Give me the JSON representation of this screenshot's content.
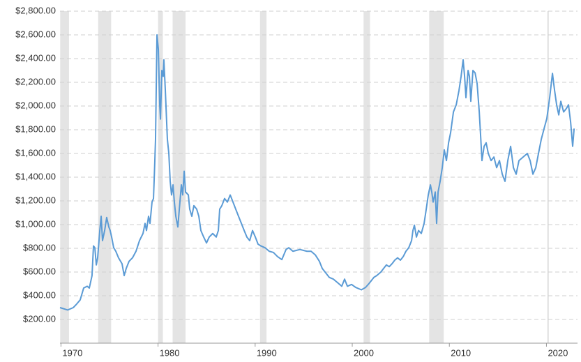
{
  "chart_data": {
    "type": "line",
    "xlim": [
      1969.9,
      2023.2
    ],
    "xticks": [
      1970,
      1980,
      1990,
      2000,
      2010,
      2020
    ],
    "ylim": [
      0,
      2800
    ],
    "yticks": [
      {
        "value": 200,
        "label": "$200.00"
      },
      {
        "value": 400,
        "label": "$400.00"
      },
      {
        "value": 600,
        "label": "$600.00"
      },
      {
        "value": 800,
        "label": "$800.00"
      },
      {
        "value": 1000,
        "label": "$1,000.00"
      },
      {
        "value": 1200,
        "label": "$1,200.00"
      },
      {
        "value": 1400,
        "label": "$1,400.00"
      },
      {
        "value": 1600,
        "label": "$1,600.00"
      },
      {
        "value": 1800,
        "label": "$1,800.00"
      },
      {
        "value": 2000,
        "label": "$2,000.00"
      },
      {
        "value": 2200,
        "label": "$2,200.00"
      },
      {
        "value": 2400,
        "label": "$2,400.00"
      },
      {
        "value": 2600,
        "label": "$2,600.00"
      },
      {
        "value": 2800,
        "label": "$2,800.00"
      }
    ],
    "grid": true,
    "color": "#5b9bd5",
    "shade_color": "#e4e4e4",
    "shaded_ranges": [
      [
        1969.92,
        1970.83
      ],
      [
        1973.83,
        1975.17
      ],
      [
        1980.0,
        1980.5
      ],
      [
        1981.5,
        1982.83
      ],
      [
        1990.5,
        1991.17
      ],
      [
        2001.17,
        2001.83
      ],
      [
        2007.92,
        2009.42
      ],
      [
        2020.08,
        2020.25
      ]
    ],
    "x": [
      1969.9,
      1970.69,
      1971.27,
      1971.62,
      1971.98,
      1972.34,
      1972.7,
      1972.92,
      1973.2,
      1973.35,
      1973.49,
      1973.64,
      1973.78,
      1974.0,
      1974.14,
      1974.28,
      1974.5,
      1974.71,
      1974.93,
      1975.07,
      1975.22,
      1975.43,
      1975.65,
      1975.93,
      1976.29,
      1976.51,
      1976.72,
      1977.01,
      1977.37,
      1977.73,
      1978.09,
      1978.45,
      1978.66,
      1978.81,
      1979.02,
      1979.17,
      1979.38,
      1979.53,
      1979.67,
      1979.74,
      1979.89,
      1980.03,
      1980.17,
      1980.25,
      1980.39,
      1980.53,
      1980.6,
      1980.75,
      1980.96,
      1981.11,
      1981.25,
      1981.39,
      1981.54,
      1981.68,
      1981.83,
      1982.04,
      1982.19,
      1982.4,
      1982.54,
      1982.69,
      1982.83,
      1983.12,
      1983.26,
      1983.48,
      1983.69,
      1983.98,
      1984.2,
      1984.41,
      1984.7,
      1984.99,
      1985.27,
      1985.63,
      1985.99,
      1986.21,
      1986.35,
      1986.57,
      1986.85,
      1987.14,
      1987.43,
      1987.72,
      1988.0,
      1988.29,
      1988.58,
      1988.87,
      1989.15,
      1989.44,
      1989.73,
      1990.02,
      1990.3,
      1990.59,
      1991.02,
      1991.45,
      1991.88,
      1992.31,
      1992.75,
      1993.18,
      1993.46,
      1993.89,
      1994.61,
      1995.33,
      1995.76,
      1996.19,
      1996.62,
      1996.91,
      1997.2,
      1997.63,
      1998.06,
      1998.49,
      1998.92,
      1999.21,
      1999.5,
      1999.93,
      2000.36,
      2000.94,
      2001.37,
      2001.8,
      2002.23,
      2002.52,
      2002.95,
      2003.23,
      2003.52,
      2003.81,
      2004.1,
      2004.38,
      2004.67,
      2004.96,
      2005.25,
      2005.53,
      2005.82,
      2006.11,
      2006.25,
      2006.4,
      2006.61,
      2006.83,
      2007.11,
      2007.4,
      2007.62,
      2007.83,
      2008.05,
      2008.19,
      2008.33,
      2008.55,
      2008.69,
      2008.84,
      2009.05,
      2009.27,
      2009.48,
      2009.7,
      2009.92,
      2010.13,
      2010.42,
      2010.71,
      2010.99,
      2011.21,
      2011.42,
      2011.57,
      2011.71,
      2011.93,
      2012.07,
      2012.21,
      2012.43,
      2012.65,
      2012.86,
      2013.08,
      2013.22,
      2013.36,
      2013.58,
      2013.79,
      2014.01,
      2014.3,
      2014.59,
      2014.87,
      2015.16,
      2015.45,
      2015.73,
      2016.02,
      2016.31,
      2016.6,
      2016.88,
      2017.17,
      2017.6,
      2018.03,
      2018.32,
      2018.61,
      2018.9,
      2019.18,
      2019.47,
      2019.76,
      2020.04,
      2020.33,
      2020.62,
      2020.84,
      2021.05,
      2021.27,
      2021.48,
      2021.77,
      2022.06,
      2022.27,
      2022.49,
      2022.7,
      2022.85
    ],
    "values": [
      300,
      280,
      300,
      330,
      365,
      465,
      480,
      465,
      570,
      820,
      805,
      660,
      720,
      950,
      1070,
      865,
      950,
      1060,
      980,
      950,
      895,
      805,
      775,
      720,
      670,
      570,
      630,
      690,
      720,
      775,
      865,
      925,
      1010,
      950,
      1070,
      1010,
      1190,
      1220,
      1540,
      1720,
      2600,
      2480,
      2010,
      1890,
      2300,
      2250,
      2390,
      2130,
      1720,
      1600,
      1365,
      1250,
      1335,
      1190,
      1070,
      980,
      1130,
      1335,
      1250,
      1450,
      1275,
      1250,
      1130,
      1070,
      1160,
      1130,
      1070,
      950,
      895,
      845,
      895,
      925,
      895,
      950,
      1130,
      1160,
      1220,
      1190,
      1250,
      1190,
      1130,
      1070,
      1010,
      950,
      895,
      865,
      950,
      895,
      835,
      820,
      805,
      775,
      765,
      730,
      705,
      790,
      805,
      775,
      790,
      775,
      775,
      745,
      690,
      630,
      600,
      555,
      540,
      510,
      480,
      540,
      480,
      495,
      470,
      450,
      470,
      510,
      555,
      570,
      600,
      630,
      660,
      645,
      670,
      700,
      720,
      700,
      730,
      775,
      805,
      865,
      950,
      995,
      895,
      950,
      925,
      1010,
      1130,
      1250,
      1335,
      1275,
      1190,
      1275,
      1010,
      1275,
      1365,
      1480,
      1630,
      1540,
      1690,
      1775,
      1950,
      2010,
      2130,
      2250,
      2390,
      2250,
      2070,
      2300,
      2250,
      2040,
      2300,
      2280,
      2190,
      1950,
      1750,
      1540,
      1660,
      1690,
      1600,
      1540,
      1570,
      1480,
      1540,
      1425,
      1365,
      1540,
      1660,
      1480,
      1425,
      1540,
      1570,
      1600,
      1540,
      1425,
      1480,
      1600,
      1720,
      1810,
      1895,
      2070,
      2275,
      2130,
      2010,
      1925,
      2040,
      1950,
      1980,
      2010,
      1865,
      1660,
      1810
    ]
  }
}
